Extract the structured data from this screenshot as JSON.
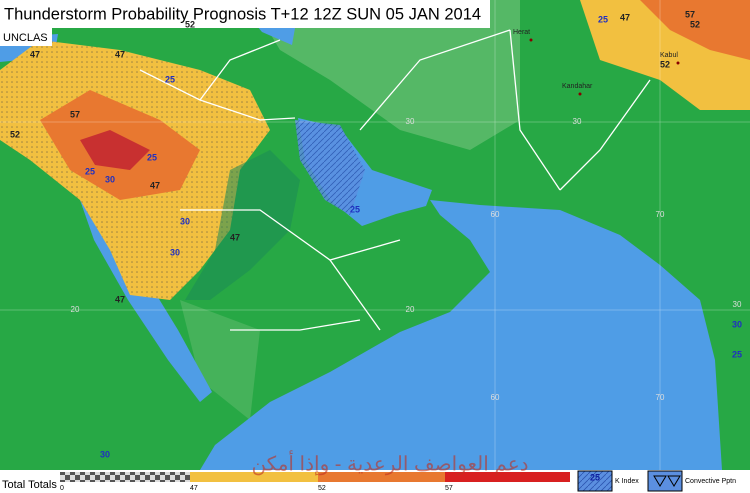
{
  "header": {
    "title": "Thunderstorm Probability Prognosis T+12 12Z SUN 05 JAN 2014",
    "classification": "UNCLAS"
  },
  "places": [
    "Herat",
    "Kandahar",
    "Kabul"
  ],
  "grid_labels": [
    "30",
    "30",
    "20",
    "20",
    "60",
    "70",
    "60",
    "70",
    "30"
  ],
  "contour_labels": [
    "47",
    "47",
    "52",
    "52",
    "57",
    "25",
    "25",
    "30",
    "30",
    "47",
    "47",
    "25",
    "30",
    "47",
    "52",
    "52",
    "57",
    "47",
    "25",
    "25",
    "30",
    "25",
    "30"
  ],
  "legend": {
    "title": "Total Totals",
    "scale": [
      "0",
      "47",
      "52",
      "57"
    ],
    "k_index_sample": "25",
    "k_index": "K Index",
    "convective": "Convective Pptn"
  },
  "watermark": "دعم العواصف الرعدية - وإذا أمكن"
}
